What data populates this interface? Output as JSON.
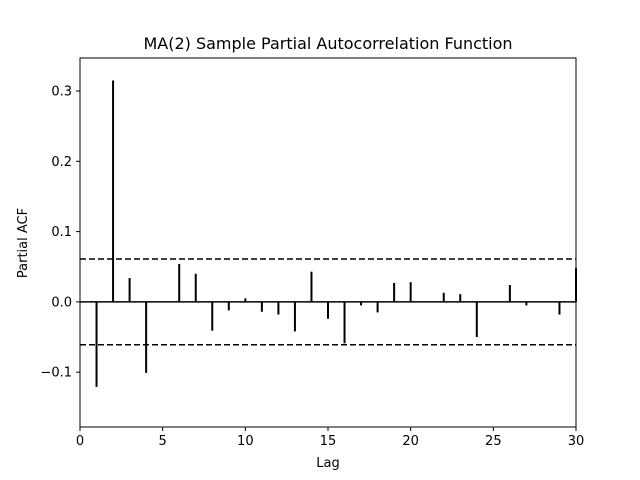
{
  "chart_data": {
    "type": "bar",
    "title": "MA(2) Sample Partial Autocorrelation Function",
    "xlabel": "Lag",
    "ylabel": "Partial ACF",
    "xlim": [
      0,
      30
    ],
    "ylim": [
      -0.178,
      0.347
    ],
    "xticks": [
      0,
      5,
      10,
      15,
      20,
      25,
      30
    ],
    "xtick_labels": [
      "0",
      "5",
      "10",
      "15",
      "20",
      "25",
      "30"
    ],
    "yticks": [
      -0.1,
      0.0,
      0.1,
      0.2,
      0.3
    ],
    "ytick_labels": [
      "−0.1",
      "0.0",
      "0.1",
      "0.2",
      "0.3"
    ],
    "grid": false,
    "bounds": {
      "upper": 0.061,
      "lower": -0.061,
      "style": "dashed"
    },
    "colors": {
      "stem": "#000000",
      "bounds": "#000000",
      "frame": "#000000"
    },
    "lags": [
      1,
      2,
      3,
      4,
      5,
      6,
      7,
      8,
      9,
      10,
      11,
      12,
      13,
      14,
      15,
      16,
      17,
      18,
      19,
      20,
      21,
      22,
      23,
      24,
      25,
      26,
      27,
      28,
      29,
      30
    ],
    "values": [
      -0.121,
      0.315,
      0.034,
      -0.101,
      0.0,
      0.054,
      0.04,
      -0.041,
      -0.012,
      0.005,
      -0.014,
      -0.018,
      -0.042,
      0.043,
      -0.024,
      -0.059,
      -0.005,
      -0.015,
      0.027,
      0.028,
      0.0,
      0.013,
      0.011,
      -0.05,
      0.0,
      0.024,
      -0.005,
      0.0,
      -0.018,
      0.048
    ]
  }
}
